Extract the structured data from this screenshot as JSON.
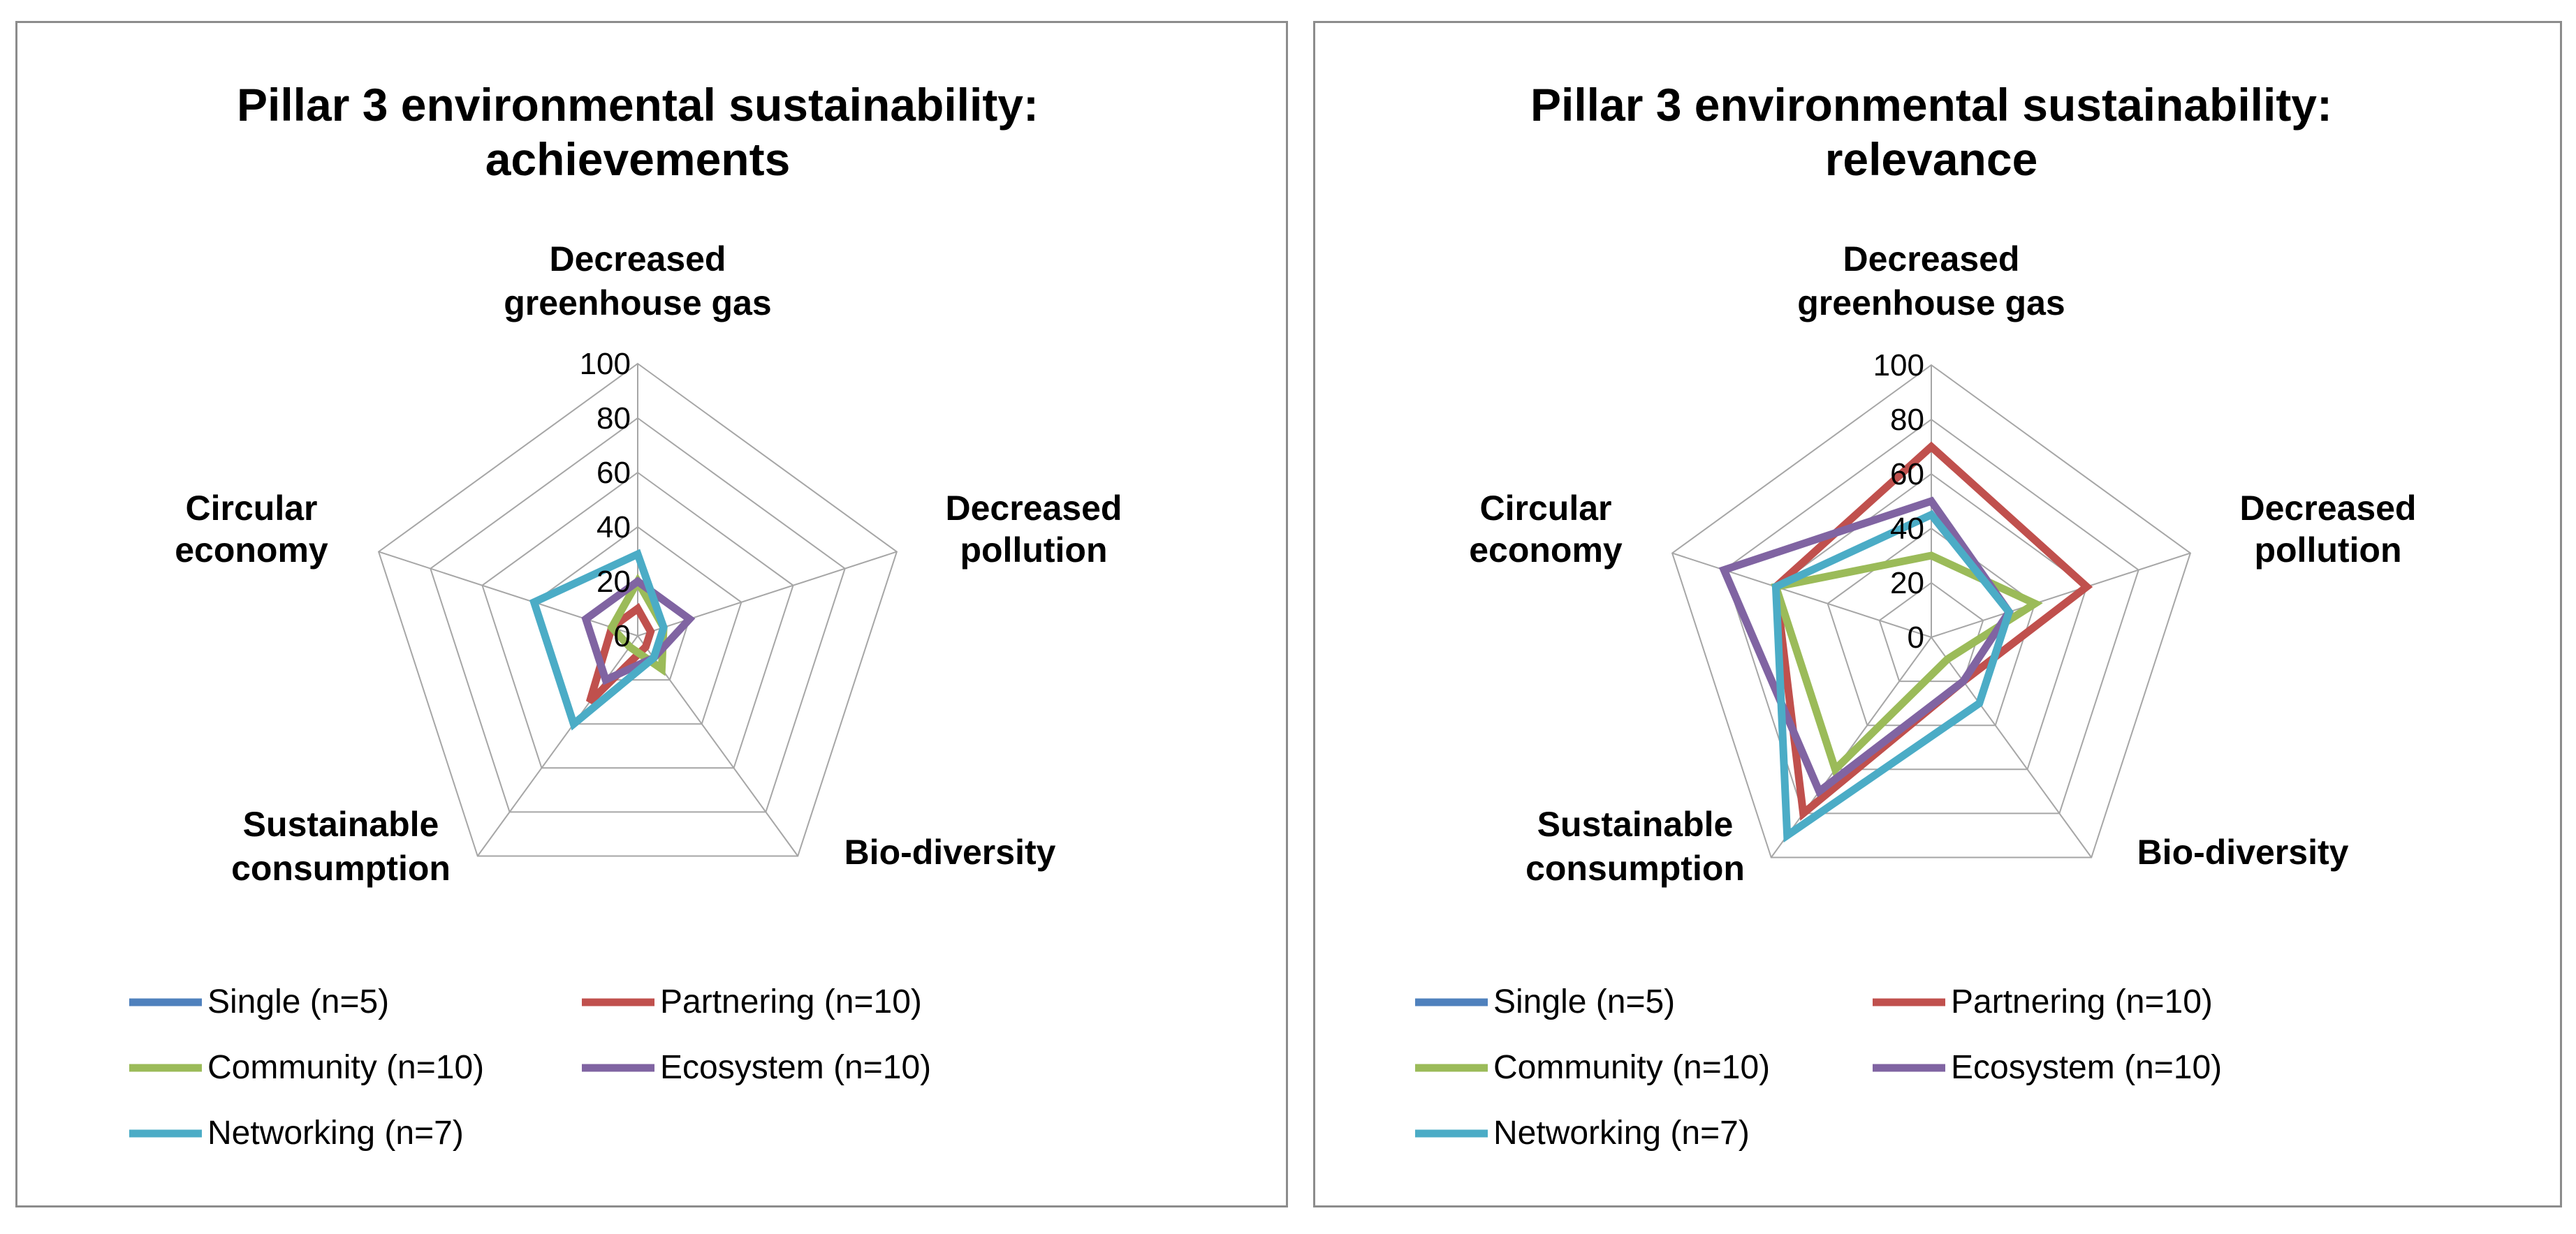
{
  "chart_data": [
    {
      "type": "radar",
      "title": [
        "Pillar 3 environmental sustainability:",
        "achievements"
      ],
      "axes": [
        [
          "Decreased",
          "greenhouse gas"
        ],
        [
          "Decreased",
          "pollution"
        ],
        [
          "Bio-diversity"
        ],
        [
          "Sustainable",
          "consumption"
        ],
        [
          "Circular",
          "economy"
        ]
      ],
      "rlim": [
        0,
        100
      ],
      "ticks": [
        "0",
        "20",
        "40",
        "60",
        "80",
        "100"
      ],
      "tick_values": [
        0,
        20,
        40,
        60,
        80,
        100
      ],
      "series": [
        {
          "name": "Single (n=5)",
          "color": "#4f81bd",
          "values": [
            0,
            0,
            0,
            0,
            0
          ]
        },
        {
          "name": "Partnering (n=10)",
          "color": "#c0504d",
          "values": [
            10,
            5,
            5,
            30,
            10
          ]
        },
        {
          "name": "Community (n=10)",
          "color": "#9bbb59",
          "values": [
            20,
            10,
            15,
            5,
            10
          ]
        },
        {
          "name": "Ecosystem (n=10)",
          "color": "#8064a2",
          "values": [
            20,
            20,
            10,
            20,
            20
          ]
        },
        {
          "name": "Networking (n=7)",
          "color": "#4bacc6",
          "values": [
            30,
            10,
            10,
            40,
            40
          ]
        }
      ]
    },
    {
      "type": "radar",
      "title": [
        "Pillar 3 environmental sustainability:",
        "relevance"
      ],
      "axes": [
        [
          "Decreased",
          "greenhouse gas"
        ],
        [
          "Decreased",
          "pollution"
        ],
        [
          "Bio-diversity"
        ],
        [
          "Sustainable",
          "consumption"
        ],
        [
          "Circular",
          "economy"
        ]
      ],
      "rlim": [
        0,
        100
      ],
      "ticks": [
        "0",
        "20",
        "40",
        "60",
        "80",
        "100"
      ],
      "tick_values": [
        0,
        20,
        40,
        60,
        80,
        100
      ],
      "series": [
        {
          "name": "Single (n=5)",
          "color": "#4f81bd",
          "values": [
            0,
            0,
            0,
            0,
            0
          ]
        },
        {
          "name": "Partnering (n=10)",
          "color": "#c0504d",
          "values": [
            70,
            60,
            20,
            80,
            60
          ]
        },
        {
          "name": "Community (n=10)",
          "color": "#9bbb59",
          "values": [
            30,
            40,
            10,
            60,
            60
          ]
        },
        {
          "name": "Ecosystem (n=10)",
          "color": "#8064a2",
          "values": [
            50,
            30,
            20,
            70,
            80
          ]
        },
        {
          "name": "Networking (n=7)",
          "color": "#4bacc6",
          "values": [
            45,
            30,
            30,
            90,
            60
          ]
        }
      ]
    }
  ]
}
